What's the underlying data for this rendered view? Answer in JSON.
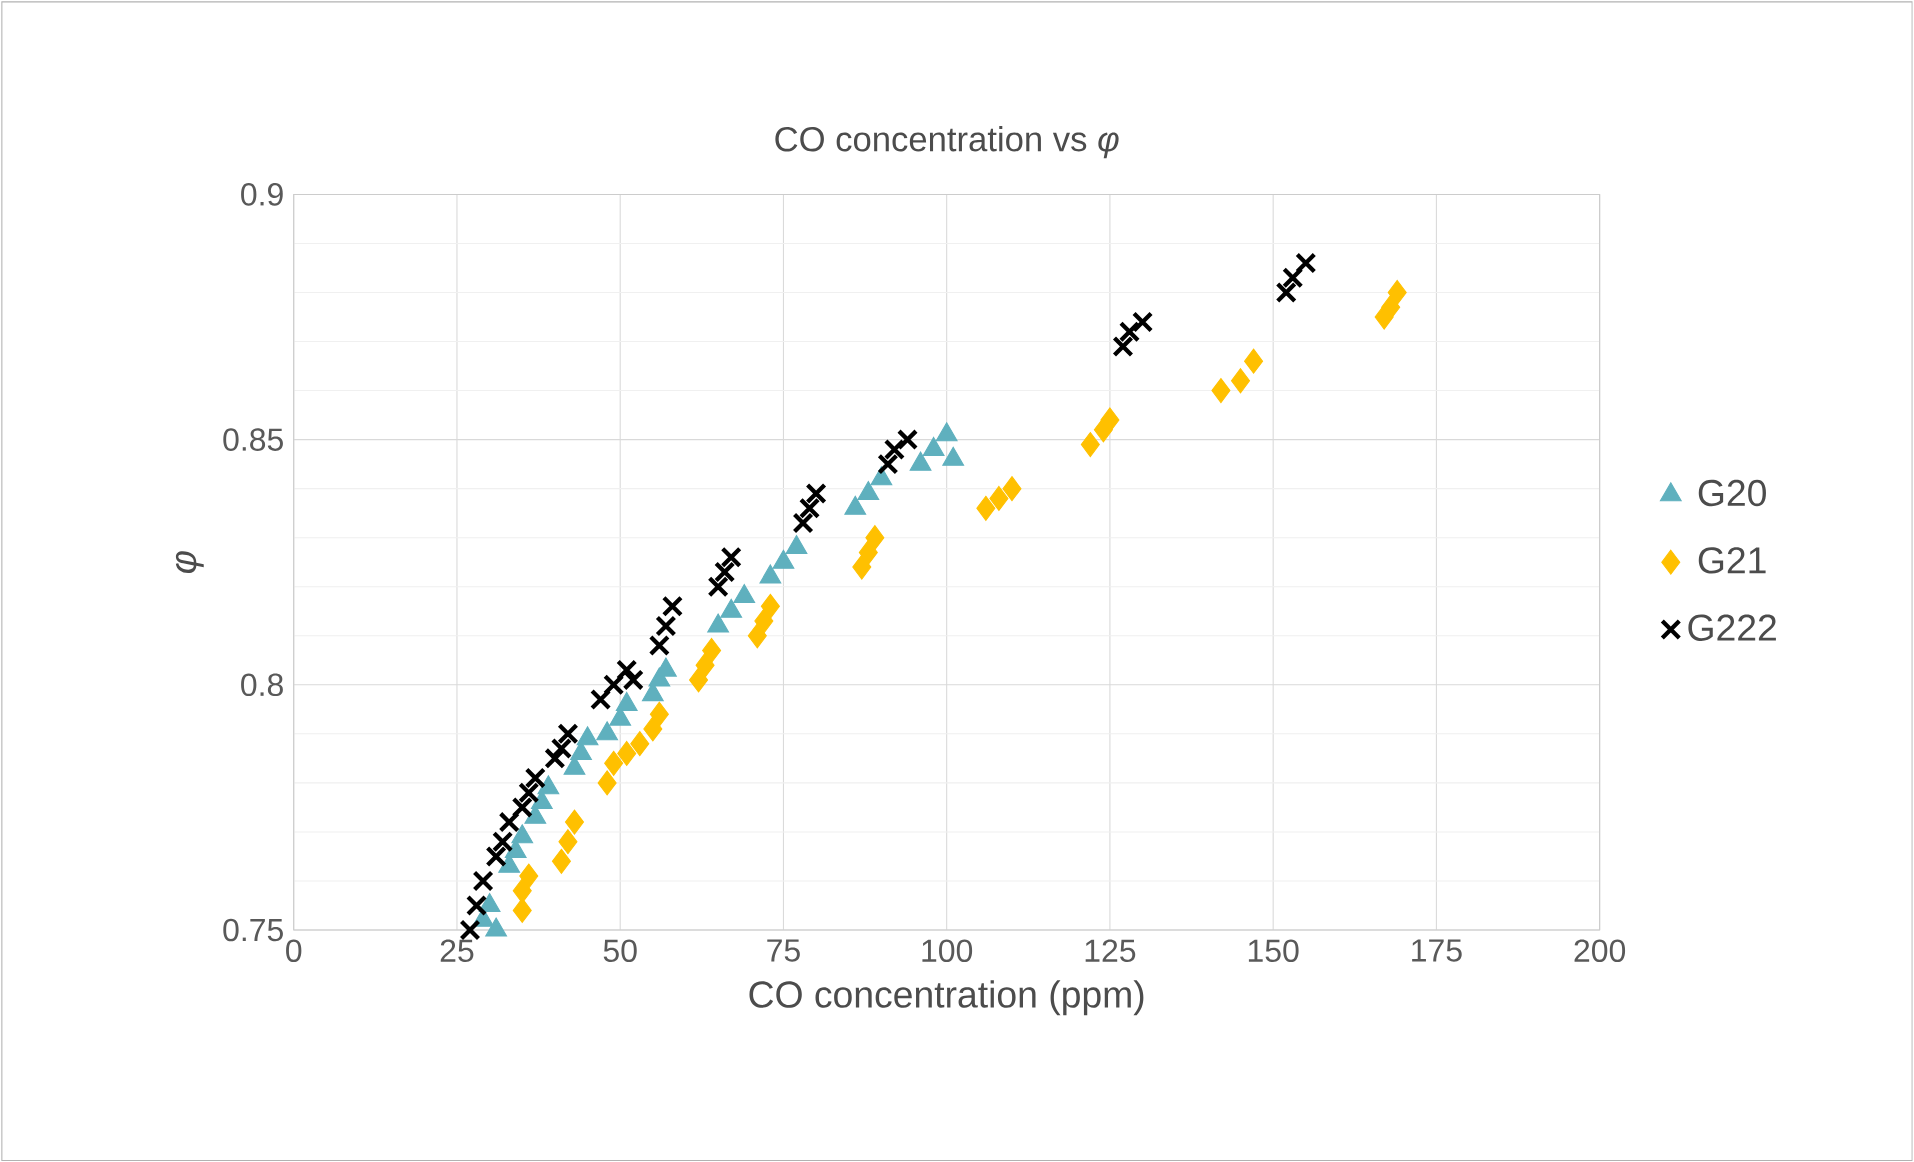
{
  "chart_data": {
    "type": "scatter",
    "title": "CO concentration vs *φ*",
    "xlabel": "CO concentration (ppm)",
    "ylabel": "φ",
    "xlim": [
      0,
      200
    ],
    "xticks": [
      0,
      25,
      50,
      75,
      100,
      125,
      150,
      175,
      200
    ],
    "ylim": [
      0.75,
      0.9
    ],
    "yticks": [
      0.75,
      0.8,
      0.85,
      0.9
    ],
    "grid": true,
    "legend": "right",
    "series": [
      {
        "name": "G20",
        "color": "#5fb0be",
        "marker": "triangle",
        "x": [
          29,
          30,
          31,
          33,
          34,
          35,
          37,
          38,
          39,
          43,
          44,
          45,
          48,
          50,
          51,
          55,
          56,
          57,
          65,
          67,
          69,
          73,
          75,
          77,
          86,
          88,
          90,
          96,
          98,
          100,
          101
        ],
        "values": [
          0.752,
          0.755,
          0.75,
          0.763,
          0.766,
          0.769,
          0.773,
          0.776,
          0.779,
          0.783,
          0.786,
          0.789,
          0.79,
          0.793,
          0.796,
          0.798,
          0.801,
          0.803,
          0.812,
          0.815,
          0.818,
          0.822,
          0.825,
          0.828,
          0.836,
          0.839,
          0.842,
          0.845,
          0.848,
          0.851,
          0.846
        ]
      },
      {
        "name": "G21",
        "color": "#ffc000",
        "marker": "diamond",
        "x": [
          35,
          35,
          36,
          41,
          42,
          43,
          48,
          49,
          51,
          53,
          55,
          56,
          62,
          63,
          64,
          71,
          72,
          73,
          87,
          88,
          89,
          106,
          108,
          110,
          122,
          124,
          125,
          142,
          145,
          147,
          167,
          168,
          169
        ],
        "values": [
          0.754,
          0.758,
          0.761,
          0.764,
          0.768,
          0.772,
          0.78,
          0.784,
          0.786,
          0.788,
          0.791,
          0.794,
          0.801,
          0.804,
          0.807,
          0.81,
          0.813,
          0.816,
          0.824,
          0.827,
          0.83,
          0.836,
          0.838,
          0.84,
          0.849,
          0.852,
          0.854,
          0.86,
          0.862,
          0.866,
          0.875,
          0.877,
          0.88
        ]
      },
      {
        "name": "G222",
        "color": "#000000",
        "marker": "cross",
        "x": [
          27,
          28,
          29,
          31,
          32,
          33,
          35,
          36,
          37,
          40,
          41,
          42,
          47,
          49,
          51,
          52,
          56,
          57,
          58,
          65,
          66,
          67,
          78,
          79,
          80,
          91,
          92,
          94,
          127,
          128,
          130,
          152,
          153,
          155
        ],
        "values": [
          0.75,
          0.755,
          0.76,
          0.765,
          0.768,
          0.772,
          0.775,
          0.778,
          0.781,
          0.785,
          0.787,
          0.79,
          0.797,
          0.8,
          0.803,
          0.801,
          0.808,
          0.812,
          0.816,
          0.82,
          0.823,
          0.826,
          0.833,
          0.836,
          0.839,
          0.845,
          0.848,
          0.85,
          0.869,
          0.872,
          0.874,
          0.88,
          0.883,
          0.886
        ]
      }
    ]
  }
}
